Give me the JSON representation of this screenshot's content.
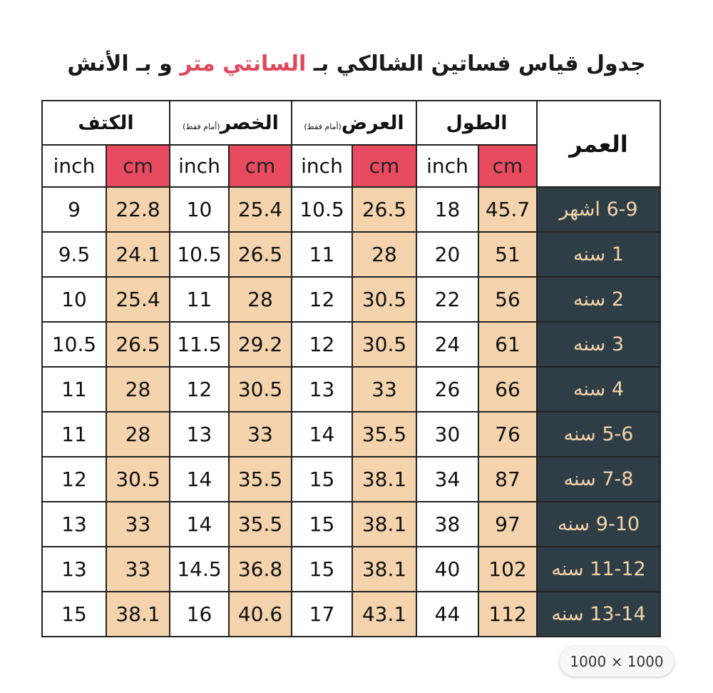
{
  "title": {
    "before": "جدول قياس فساتين الشالكي بـ",
    "highlight": "السانتي متر",
    "after": "و بـ الأنش"
  },
  "table": {
    "age_header": "العمر",
    "groups": [
      {
        "label": "الطول",
        "cm": "cm",
        "inch": "inch"
      },
      {
        "label": "العرض",
        "note": "(أمام فقط)",
        "cm": "cm",
        "inch": "inch"
      },
      {
        "label": "الخصر",
        "note": "(أمام فقط)",
        "cm": "cm",
        "inch": "inch"
      },
      {
        "label": "الكتف",
        "cm": "cm",
        "inch": "inch"
      }
    ],
    "rows": [
      {
        "age": "6-9 اشهر",
        "values": [
          45.7,
          18,
          26.5,
          10.5,
          25.4,
          10,
          22.8,
          9
        ]
      },
      {
        "age": "1 سنه",
        "values": [
          51,
          20,
          28,
          11,
          26.5,
          10.5,
          24.1,
          9.5
        ]
      },
      {
        "age": "2 سنه",
        "values": [
          56,
          22,
          30.5,
          12,
          28,
          11,
          25.4,
          10
        ]
      },
      {
        "age": "3 سنه",
        "values": [
          61,
          24,
          30.5,
          12,
          29.2,
          11.5,
          26.5,
          10.5
        ]
      },
      {
        "age": "4 سنه",
        "values": [
          66,
          26,
          33,
          13,
          30.5,
          12,
          28,
          11
        ]
      },
      {
        "age": "5-6 سنه",
        "values": [
          76,
          30,
          35.5,
          14,
          33,
          13,
          28,
          11
        ]
      },
      {
        "age": "7-8 سنه",
        "values": [
          87,
          34,
          38.1,
          15,
          35.5,
          14,
          30.5,
          12
        ]
      },
      {
        "age": "9-10 سنه",
        "values": [
          97,
          38,
          38.1,
          15,
          35.5,
          14,
          33,
          13
        ]
      },
      {
        "age": "11-12 سنه",
        "values": [
          102,
          40,
          38.1,
          15,
          36.8,
          14.5,
          33,
          13
        ]
      },
      {
        "age": "13-14 سنه",
        "values": [
          112,
          44,
          43.1,
          17,
          40.6,
          16,
          38.1,
          15
        ]
      }
    ]
  },
  "badge": "1000 × 1000"
}
